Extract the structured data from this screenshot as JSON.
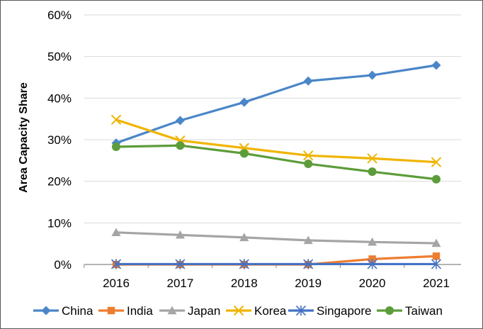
{
  "chart_data": {
    "type": "line",
    "title": "",
    "xlabel": "",
    "ylabel": "Area Capacity Share",
    "categories": [
      "2016",
      "2017",
      "2018",
      "2019",
      "2020",
      "2021"
    ],
    "ylim": [
      0,
      0.6
    ],
    "yticks": [
      0,
      0.1,
      0.2,
      0.3,
      0.4,
      0.5,
      0.6
    ],
    "ytick_labels": [
      "0%",
      "10%",
      "20%",
      "30%",
      "40%",
      "50%",
      "60%"
    ],
    "grid": true,
    "legend_position": "bottom",
    "series": [
      {
        "name": "China",
        "color": "#4a86c8",
        "marker": "diamond",
        "values": [
          0.292,
          0.346,
          0.39,
          0.441,
          0.455,
          0.479
        ]
      },
      {
        "name": "India",
        "color": "#ed7d31",
        "marker": "square",
        "values": [
          0.0,
          0.0,
          0.0,
          0.0,
          0.013,
          0.02
        ]
      },
      {
        "name": "Japan",
        "color": "#a5a5a5",
        "marker": "triangle",
        "values": [
          0.077,
          0.071,
          0.065,
          0.058,
          0.054,
          0.051
        ]
      },
      {
        "name": "Korea",
        "color": "#f0b400",
        "marker": "x",
        "values": [
          0.348,
          0.298,
          0.28,
          0.262,
          0.255,
          0.246
        ]
      },
      {
        "name": "Singapore",
        "color": "#4472c4",
        "marker": "star",
        "values": [
          0.001,
          0.001,
          0.001,
          0.001,
          0.001,
          0.001
        ]
      },
      {
        "name": "Taiwan",
        "color": "#5d9c3a",
        "marker": "circle",
        "values": [
          0.283,
          0.286,
          0.267,
          0.242,
          0.223,
          0.205
        ]
      }
    ]
  }
}
